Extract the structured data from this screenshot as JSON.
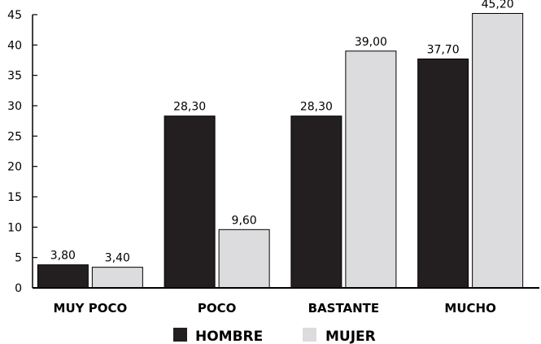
{
  "chart_data": {
    "type": "bar",
    "categories": [
      "MUY POCO",
      "POCO",
      "BASTANTE",
      "MUCHO"
    ],
    "series": [
      {
        "name": "HOMBRE",
        "values": [
          3.8,
          28.3,
          28.3,
          37.7
        ],
        "labels": [
          "3,80",
          "28,30",
          "28,30",
          "37,70"
        ],
        "color": "#231f20"
      },
      {
        "name": "MUJER",
        "values": [
          3.4,
          9.6,
          39.0,
          45.2
        ],
        "labels": [
          "3,40",
          "9,60",
          "39,00",
          "45,20"
        ],
        "color": "#dcdcde"
      }
    ],
    "y_ticks": [
      "0",
      "5",
      "10",
      "15",
      "20",
      "25",
      "30",
      "35",
      "40",
      "45"
    ],
    "ylim": [
      0,
      45
    ],
    "grid": false,
    "legend_position": "bottom-center"
  }
}
